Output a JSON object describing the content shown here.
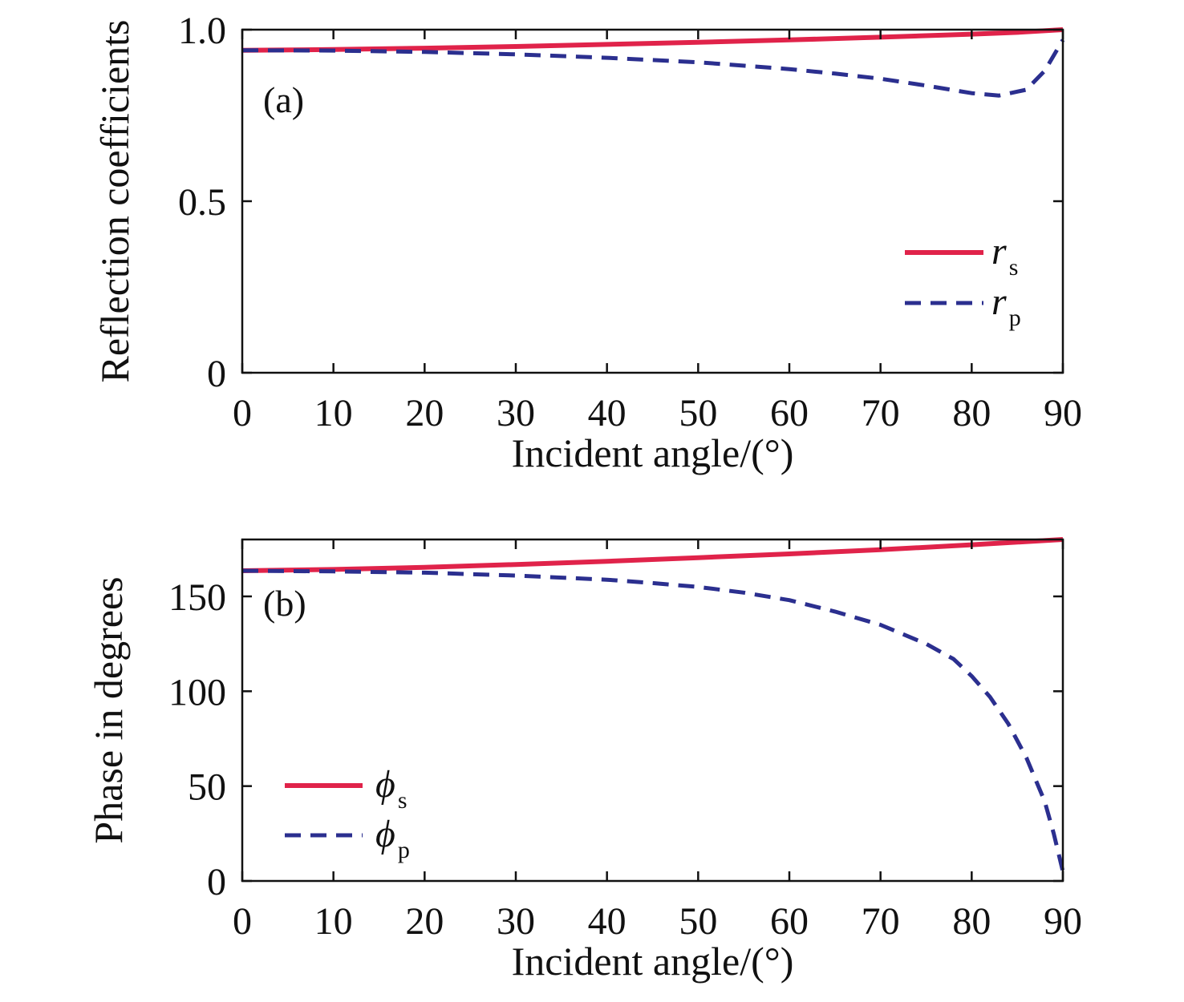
{
  "chart_data": [
    {
      "type": "line",
      "panel_label": "(a)",
      "xlabel": "Incident angle/(°)",
      "ylabel": "Reflection coefficients",
      "xlim": [
        0,
        90
      ],
      "ylim": [
        0,
        1.0
      ],
      "xticks": [
        0,
        10,
        20,
        30,
        40,
        50,
        60,
        70,
        80,
        90
      ],
      "xtick_labels": [
        "0",
        "10",
        "20",
        "30",
        "40",
        "50",
        "60",
        "70",
        "80",
        "90"
      ],
      "yticks": [
        0,
        0.5,
        1.0
      ],
      "ytick_labels": [
        "0",
        "0.5",
        "1.0"
      ],
      "legend_position": "right",
      "series": [
        {
          "name": "r",
          "subscript": "s",
          "color": "#e0234a",
          "style": "solid",
          "x": [
            0,
            10,
            20,
            30,
            40,
            50,
            60,
            70,
            80,
            85,
            90
          ],
          "y": [
            0.94,
            0.942,
            0.946,
            0.951,
            0.957,
            0.963,
            0.97,
            0.978,
            0.987,
            0.992,
            1.0
          ]
        },
        {
          "name": "r",
          "subscript": "p",
          "color": "#2b2f8f",
          "style": "dashed",
          "x": [
            0,
            10,
            20,
            30,
            40,
            50,
            60,
            65,
            70,
            75,
            80,
            83,
            86,
            88,
            90
          ],
          "y": [
            0.94,
            0.939,
            0.935,
            0.928,
            0.918,
            0.905,
            0.885,
            0.872,
            0.857,
            0.837,
            0.815,
            0.808,
            0.825,
            0.88,
            0.97
          ]
        }
      ]
    },
    {
      "type": "line",
      "panel_label": "(b)",
      "xlabel": "Incident angle/(°)",
      "ylabel": "Phase in degrees",
      "xlim": [
        0,
        90
      ],
      "ylim": [
        0,
        180
      ],
      "xticks": [
        0,
        10,
        20,
        30,
        40,
        50,
        60,
        70,
        80,
        90
      ],
      "xtick_labels": [
        "0",
        "10",
        "20",
        "30",
        "40",
        "50",
        "60",
        "70",
        "80",
        "90"
      ],
      "yticks": [
        0,
        50,
        100,
        150
      ],
      "ytick_labels": [
        "0",
        "50",
        "100",
        "150"
      ],
      "legend_position": "left",
      "series": [
        {
          "name": "ϕ",
          "subscript": "s",
          "color": "#e0234a",
          "style": "solid",
          "x": [
            0,
            10,
            20,
            30,
            40,
            50,
            60,
            70,
            80,
            90
          ],
          "y": [
            163.5,
            164.2,
            165.3,
            166.8,
            168.5,
            170.4,
            172.4,
            174.6,
            177.2,
            180
          ]
        },
        {
          "name": "ϕ",
          "subscript": "p",
          "color": "#2b2f8f",
          "style": "dashed",
          "x": [
            0,
            10,
            20,
            30,
            40,
            45,
            50,
            55,
            60,
            65,
            70,
            75,
            78,
            80,
            82,
            84,
            86,
            88,
            89,
            90
          ],
          "y": [
            163.5,
            163.2,
            162.5,
            161.0,
            158.8,
            157.0,
            155.0,
            152.0,
            148.0,
            142.0,
            135.0,
            125.0,
            117.0,
            108.0,
            97.0,
            83.0,
            65.0,
            42.0,
            25.0,
            5.0
          ]
        }
      ]
    }
  ]
}
